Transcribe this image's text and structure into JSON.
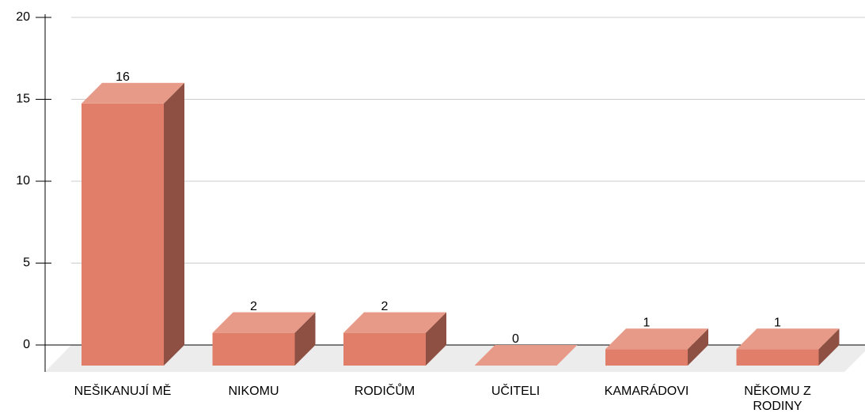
{
  "chart_data": {
    "type": "bar3d",
    "categories": [
      "NEŠIKANUJÍ MĚ",
      "NIKOMU",
      "RODIČŮM",
      "UČITELI",
      "KAMARÁDOVI",
      "NĚKOMU Z RODINY"
    ],
    "values": [
      16,
      2,
      2,
      0,
      1,
      1
    ],
    "color": "#e07e6a",
    "ylim": [
      0,
      20
    ],
    "yticks": [
      0,
      5,
      10,
      15,
      20
    ],
    "grid": true
  }
}
